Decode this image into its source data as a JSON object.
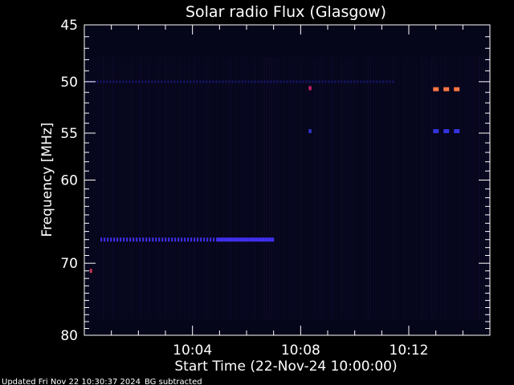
{
  "chart_data": {
    "type": "heatmap",
    "title": "Solar radio Flux (Glasgow)",
    "xlabel": "Start Time (22-Nov-24 10:00:00)",
    "ylabel": "Frequency [MHz]",
    "x_range_minutes": [
      0,
      15
    ],
    "y_range_mhz": [
      45,
      80
    ],
    "x_ticks": [
      {
        "minute": 4,
        "label": "10:04"
      },
      {
        "minute": 8,
        "label": "10:08"
      },
      {
        "minute": 12,
        "label": "10:12"
      }
    ],
    "y_ticks": [
      {
        "value": 45,
        "label": "45"
      },
      {
        "value": 50,
        "label": "50"
      },
      {
        "value": 55,
        "label": "55"
      },
      {
        "value": 60,
        "label": "60"
      },
      {
        "value": 70,
        "label": "70"
      },
      {
        "value": 80,
        "label": "80"
      }
    ],
    "features": [
      {
        "kind": "band",
        "freq_mhz": 67,
        "start_min": 0.6,
        "end_min": 6.9,
        "intensity": "medium",
        "color": "#4433ff"
      },
      {
        "kind": "band",
        "freq_mhz": 50,
        "start_min": 0.1,
        "end_min": 11.5,
        "intensity": "low",
        "color": "#2222aa"
      },
      {
        "kind": "burst",
        "freq_mhz": 50.7,
        "start_min": 12.9,
        "end_min": 13.9,
        "intensity": "high",
        "color": "#ff7744"
      },
      {
        "kind": "burst",
        "freq_mhz": 54.8,
        "start_min": 12.9,
        "end_min": 13.9,
        "intensity": "medium",
        "color": "#3333dd"
      },
      {
        "kind": "burst",
        "freq_mhz": 50.6,
        "start_min": 8.3,
        "end_min": 8.4,
        "intensity": "medium",
        "color": "#cc2266"
      },
      {
        "kind": "burst",
        "freq_mhz": 54.8,
        "start_min": 8.3,
        "end_min": 8.4,
        "intensity": "medium",
        "color": "#3333cc"
      },
      {
        "kind": "burst",
        "freq_mhz": 71,
        "start_min": 0.2,
        "end_min": 0.25,
        "intensity": "high",
        "color": "#cc3355"
      }
    ],
    "colors": {
      "background": "#000000",
      "plot_base": "#06061a",
      "axes": "#ffffff"
    }
  },
  "footer": {
    "updated": "Updated Fri Nov 22 10:30:37 2024",
    "note": "BG subtracted"
  }
}
